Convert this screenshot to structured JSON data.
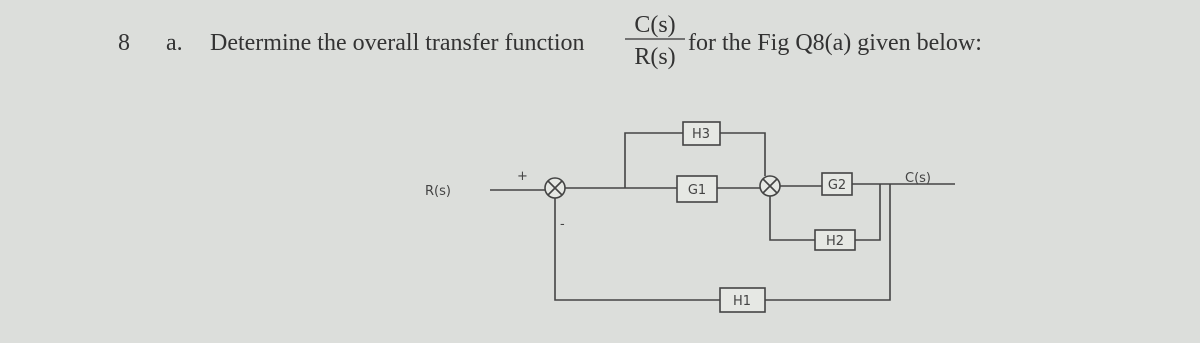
{
  "question": {
    "number": "8",
    "part": "a.",
    "text_before": "Determine the overall transfer function",
    "fraction": {
      "numerator": "C(s)",
      "denominator": "R(s)"
    },
    "text_after": "for the Fig Q8(a) given below:"
  },
  "diagram": {
    "input": "R(s)",
    "output": "C(s)",
    "blocks": {
      "h3": "H3",
      "g1": "G1",
      "g2": "G2",
      "h2": "H2",
      "h1": "H1"
    },
    "signs": {
      "plus": "+",
      "minus": "-"
    }
  }
}
